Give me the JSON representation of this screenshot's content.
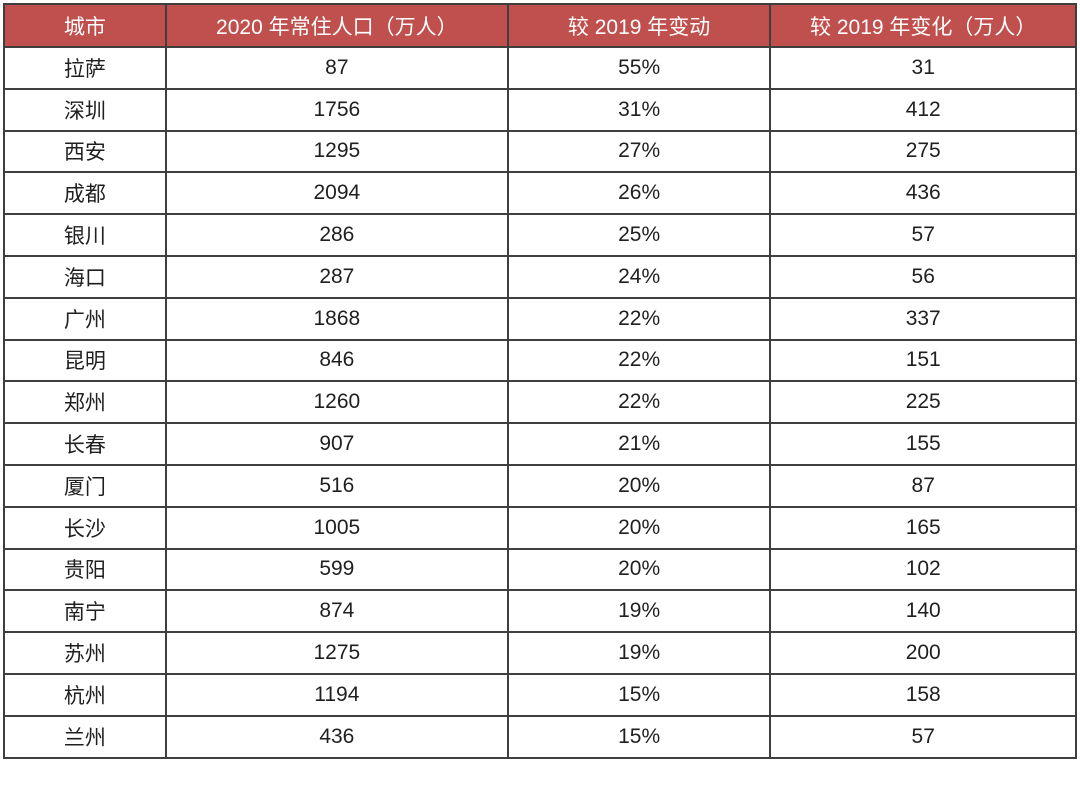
{
  "table": {
    "columns": [
      "城市",
      "2020 年常住人口（万人）",
      "较 2019 年变动",
      "较 2019 年变化（万人）"
    ],
    "rows": [
      {
        "city": "拉萨",
        "population": "87",
        "change_pct": "55%",
        "change_abs": "31"
      },
      {
        "city": "深圳",
        "population": "1756",
        "change_pct": "31%",
        "change_abs": "412"
      },
      {
        "city": "西安",
        "population": "1295",
        "change_pct": "27%",
        "change_abs": "275"
      },
      {
        "city": "成都",
        "population": "2094",
        "change_pct": "26%",
        "change_abs": "436"
      },
      {
        "city": "银川",
        "population": "286",
        "change_pct": "25%",
        "change_abs": "57"
      },
      {
        "city": "海口",
        "population": "287",
        "change_pct": "24%",
        "change_abs": "56"
      },
      {
        "city": "广州",
        "population": "1868",
        "change_pct": "22%",
        "change_abs": "337"
      },
      {
        "city": "昆明",
        "population": "846",
        "change_pct": "22%",
        "change_abs": "151"
      },
      {
        "city": "郑州",
        "population": "1260",
        "change_pct": "22%",
        "change_abs": "225"
      },
      {
        "city": "长春",
        "population": "907",
        "change_pct": "21%",
        "change_abs": "155"
      },
      {
        "city": "厦门",
        "population": "516",
        "change_pct": "20%",
        "change_abs": "87"
      },
      {
        "city": "长沙",
        "population": "1005",
        "change_pct": "20%",
        "change_abs": "165"
      },
      {
        "city": "贵阳",
        "population": "599",
        "change_pct": "20%",
        "change_abs": "102"
      },
      {
        "city": "南宁",
        "population": "874",
        "change_pct": "19%",
        "change_abs": "140"
      },
      {
        "city": "苏州",
        "population": "1275",
        "change_pct": "19%",
        "change_abs": "200"
      },
      {
        "city": "杭州",
        "population": "1194",
        "change_pct": "15%",
        "change_abs": "158"
      },
      {
        "city": "兰州",
        "population": "436",
        "change_pct": "15%",
        "change_abs": "57"
      }
    ]
  },
  "colors": {
    "header_bg": "#c0504d",
    "header_text": "#ffffff",
    "border": "#3f3f3f",
    "cell_text": "#1f1f1f"
  },
  "chart_data": {
    "type": "table",
    "title": "",
    "columns": [
      "城市",
      "2020 年常住人口（万人）",
      "较 2019 年变动",
      "较 2019 年变化（万人）"
    ],
    "rows": [
      [
        "拉萨",
        87,
        "55%",
        31
      ],
      [
        "深圳",
        1756,
        "31%",
        412
      ],
      [
        "西安",
        1295,
        "27%",
        275
      ],
      [
        "成都",
        2094,
        "26%",
        436
      ],
      [
        "银川",
        286,
        "25%",
        57
      ],
      [
        "海口",
        287,
        "24%",
        56
      ],
      [
        "广州",
        1868,
        "22%",
        337
      ],
      [
        "昆明",
        846,
        "22%",
        151
      ],
      [
        "郑州",
        1260,
        "22%",
        225
      ],
      [
        "长春",
        907,
        "21%",
        155
      ],
      [
        "厦门",
        516,
        "20%",
        87
      ],
      [
        "长沙",
        1005,
        "20%",
        165
      ],
      [
        "贵阳",
        599,
        "20%",
        102
      ],
      [
        "南宁",
        874,
        "19%",
        140
      ],
      [
        "苏州",
        1275,
        "19%",
        200
      ],
      [
        "杭州",
        1194,
        "15%",
        158
      ],
      [
        "兰州",
        436,
        "15%",
        57
      ]
    ]
  }
}
